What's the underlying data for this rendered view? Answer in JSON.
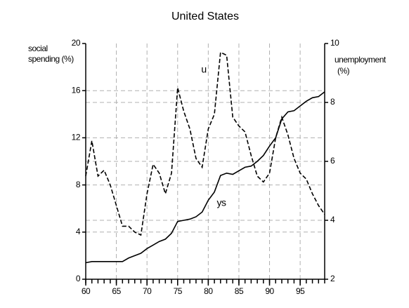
{
  "chart_data": {
    "type": "line",
    "title": "United States",
    "ylabel": [
      "social",
      "spending (%)"
    ],
    "y2label": [
      "unemployment",
      "(%)"
    ],
    "x": [
      60,
      61,
      62,
      63,
      64,
      65,
      66,
      67,
      68,
      69,
      70,
      71,
      72,
      73,
      74,
      75,
      76,
      77,
      78,
      79,
      80,
      81,
      82,
      83,
      84,
      85,
      86,
      87,
      88,
      89,
      90,
      91,
      92,
      93,
      94,
      95,
      96,
      97,
      98,
      99
    ],
    "xlim": [
      60,
      99
    ],
    "xticks": [
      60,
      65,
      70,
      75,
      80,
      85,
      90,
      95
    ],
    "ylim": [
      0,
      20
    ],
    "yticks": [
      0,
      4,
      8,
      12,
      16,
      20
    ],
    "y2lim": [
      2,
      10
    ],
    "y2ticks": [
      2,
      4,
      6,
      8,
      10
    ],
    "grid": true,
    "series": [
      {
        "name": "ys",
        "color": "#000000",
        "dash": false,
        "values": [
          1.4,
          1.5,
          1.5,
          1.5,
          1.5,
          1.5,
          1.5,
          1.8,
          2.0,
          2.2,
          2.6,
          2.9,
          3.2,
          3.4,
          3.9,
          4.9,
          5.0,
          5.1,
          5.3,
          5.7,
          6.7,
          7.4,
          8.8,
          9.0,
          8.9,
          9.2,
          9.5,
          9.6,
          10.0,
          10.5,
          11.3,
          12.0,
          13.6,
          14.2,
          14.3,
          14.7,
          15.1,
          15.4,
          15.5,
          15.9
        ]
      },
      {
        "name": "u",
        "color": "#000000",
        "dash": true,
        "axis": "y2",
        "values": [
          5.5,
          6.7,
          5.5,
          5.7,
          5.2,
          4.5,
          3.8,
          3.8,
          3.6,
          3.5,
          4.9,
          5.9,
          5.6,
          4.9,
          5.6,
          8.5,
          7.7,
          7.1,
          6.1,
          5.8,
          7.1,
          7.6,
          9.7,
          9.6,
          7.5,
          7.2,
          7.0,
          6.2,
          5.5,
          5.3,
          5.6,
          6.8,
          7.5,
          6.9,
          6.1,
          5.6,
          5.4,
          4.9,
          4.5,
          4.2
        ]
      }
    ]
  }
}
